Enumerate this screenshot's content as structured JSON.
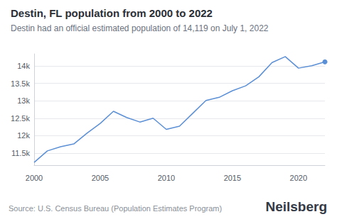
{
  "chart_data": {
    "type": "line",
    "title": "Destin, FL population from 2000 to 2022",
    "subtitle": "Destin had an official estimated population of 14,119 on July 1, 2022",
    "annotations": [
      "Source: U.S. Census Bureau (Population Estimates Program)",
      "Neilsberg"
    ],
    "x": [
      2000,
      2001,
      2002,
      2003,
      2004,
      2005,
      2006,
      2007,
      2008,
      2009,
      2010,
      2011,
      2012,
      2013,
      2014,
      2015,
      2016,
      2017,
      2018,
      2019,
      2020,
      2021,
      2022
    ],
    "values": [
      11230,
      11560,
      11680,
      11760,
      12070,
      12350,
      12700,
      12520,
      12390,
      12500,
      12180,
      12270,
      12640,
      13010,
      13100,
      13290,
      13430,
      13690,
      14100,
      14270,
      13940,
      14010,
      14119
    ],
    "color": "#5b8fd6",
    "marker": "circle",
    "xlim": [
      2000,
      2022
    ],
    "xticks": [
      2000,
      2005,
      2010,
      2015,
      2020
    ],
    "ylim": [
      11150,
      14350
    ],
    "yticks": [
      {
        "value": 11500,
        "label": "11.5k"
      },
      {
        "value": 12000,
        "label": "12k"
      },
      {
        "value": 12500,
        "label": "12.5k"
      },
      {
        "value": 13000,
        "label": "13k"
      },
      {
        "value": 13500,
        "label": "13.5k"
      },
      {
        "value": 14000,
        "label": "14k"
      }
    ],
    "grid": true
  }
}
